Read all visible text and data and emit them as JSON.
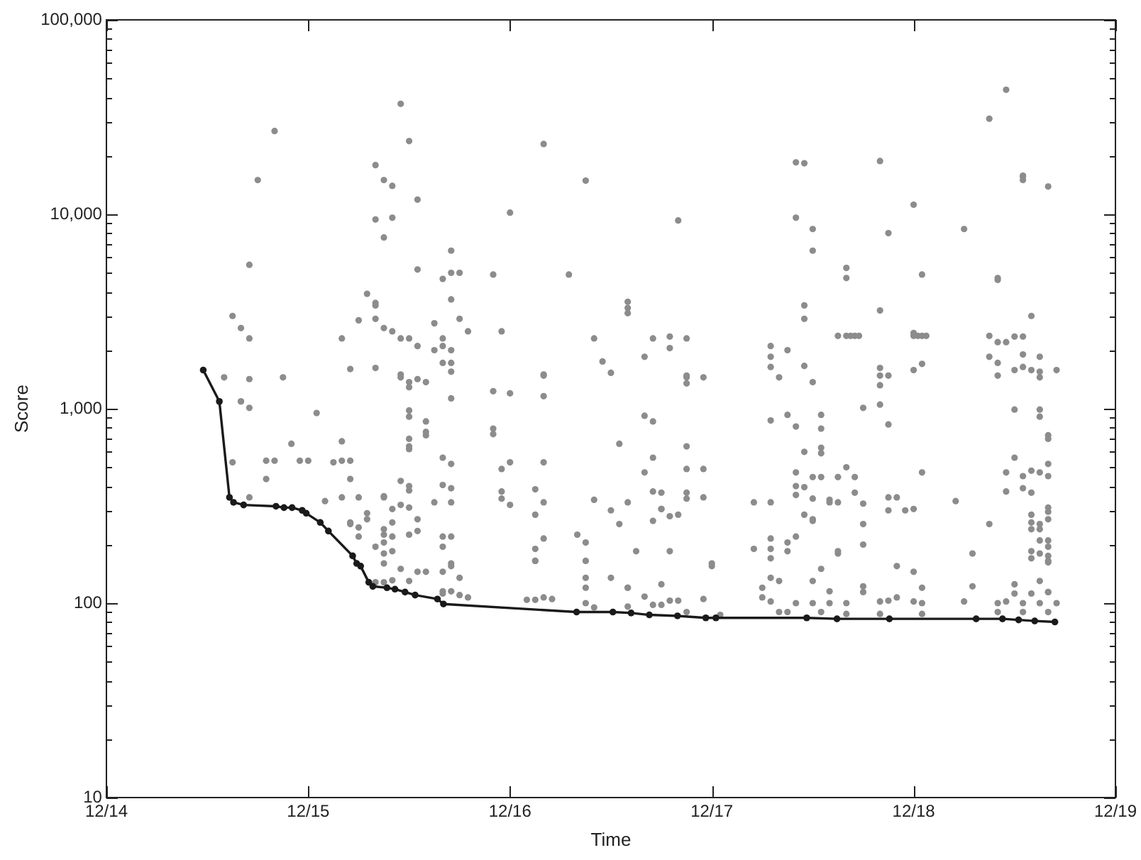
{
  "chart_data": {
    "type": "scatter",
    "xlabel": "Time",
    "ylabel": "Score",
    "log": "y",
    "marker": "circle",
    "xlim": [
      "--12-14",
      "--12-19"
    ],
    "xticks": [
      {
        "value": "--12-14",
        "label": "12/14"
      },
      {
        "value": "--12-15",
        "label": "12/15"
      },
      {
        "value": "--12-16",
        "label": "12/16"
      },
      {
        "value": "--12-17",
        "label": "12/17"
      },
      {
        "value": "--12-18",
        "label": "12/18"
      },
      {
        "value": "--12-19",
        "label": "12/19"
      }
    ],
    "ylim": [
      10,
      100000
    ],
    "yticks": [
      10,
      {
        "value": 20,
        "label": null
      },
      {
        "value": 30,
        "label": null
      },
      {
        "value": 40,
        "label": null
      },
      {
        "value": 50,
        "label": null
      },
      {
        "value": 60,
        "label": null
      },
      {
        "value": 70,
        "label": null
      },
      {
        "value": 80,
        "label": null
      },
      {
        "value": 90,
        "label": null
      },
      100,
      {
        "value": 200,
        "label": null
      },
      {
        "value": 300,
        "label": null
      },
      {
        "value": 400,
        "label": null
      },
      {
        "value": 500,
        "label": null
      },
      {
        "value": 600,
        "label": null
      },
      {
        "value": 700,
        "label": null
      },
      {
        "value": 800,
        "label": null
      },
      {
        "value": 900,
        "label": null
      },
      {
        "value": 1000,
        "label": "1,000"
      },
      {
        "value": 2000,
        "label": null
      },
      {
        "value": 3000,
        "label": null
      },
      {
        "value": 4000,
        "label": null
      },
      {
        "value": 5000,
        "label": null
      },
      {
        "value": 6000,
        "label": null
      },
      {
        "value": 7000,
        "label": null
      },
      {
        "value": 8000,
        "label": null
      },
      {
        "value": 9000,
        "label": null
      },
      {
        "value": 10000,
        "label": "10,000"
      },
      {
        "value": 20000,
        "label": null
      },
      {
        "value": 30000,
        "label": null
      },
      {
        "value": 40000,
        "label": null
      },
      {
        "value": 50000,
        "label": null
      },
      {
        "value": 60000,
        "label": null
      },
      {
        "value": 70000,
        "label": null
      },
      {
        "value": 80000,
        "label": null
      },
      {
        "value": 90000,
        "label": null
      },
      {
        "value": 100000,
        "label": "100,000"
      }
    ],
    "series": [
      {
        "type": "scatter",
        "color": "#8c8c8c",
        "x": [
          "--12-14T20:00",
          "--12-14T18:00",
          "--12-14T17:00",
          "--12-14T15:00",
          "--12-14T16:00",
          "--12-14T17:00",
          "--12-15T11:00",
          "--12-15T12:00",
          "--12-15T08:00",
          "--12-15T09:00",
          "--12-15T10:00",
          "--12-15T13:00",
          "--12-15T08:00",
          "--12-15T10:00",
          "--12-15T09:00",
          "--12-15T17:00",
          "--12-15T13:00",
          "--12-15T16:00",
          "--12-15T17:00",
          "--12-15T17:00",
          "--12-15T07:00",
          "--12-15T08:00",
          "--12-15T08:00",
          "--12-15T08:00",
          "--12-15T06:00",
          "--12-15T09:00",
          "--12-15T04:00",
          "--12-15T10:00",
          "--12-15T11:00",
          "--12-15T12:00",
          "--12-15T13:00",
          "--12-15T15:00",
          "--12-15T16:00",
          "--12-15T16:00",
          "--12-15T15:00",
          "--12-15T17:00",
          "--12-16T04:00",
          "--12-16T09:00",
          "--12-16T00:00",
          "--12-16T20:00",
          "--12-15T18:00",
          "--12-15T22:00",
          "--12-16T07:00",
          "--12-15T18:00",
          "--12-15T19:00",
          "--12-15T23:00",
          "--12-16T14:00",
          "--12-16T14:00",
          "--12-16T14:00",
          "--12-16T10:00",
          "--12-16T17:00",
          "--12-16T19:00",
          "--12-16T21:00",
          "--12-16T19:00",
          "--12-17T07:00",
          "--12-17T09:00",
          "--12-17T07:00",
          "--12-18T11:00",
          "--12-18T09:00",
          "--12-17T10:00",
          "--12-17T11:00",
          "--12-17T20:00",
          "--12-18T13:00",
          "--12-18T13:00",
          "--12-18T13:00",
          "--12-18T16:00",
          "--12-18T00:00",
          "--12-17T10:00",
          "--12-17T12:00",
          "--12-17T21:00",
          "--12-18T06:00",
          "--12-17T12:00",
          "--12-17T16:00",
          "--12-17T16:00",
          "--12-18T01:00",
          "--12-18T10:00",
          "--12-18T10:00",
          "--12-17T11:00",
          "--12-17T11:00",
          "--12-17T20:00",
          "--12-18T14:00",
          "--12-17T15:00",
          "--12-17T16:00",
          "--12-17T16:30",
          "--12-17T17:00",
          "--12-17T17:30",
          "--12-18T00:00",
          "--12-18T00:30",
          "--12-18T01:00",
          "--12-18T01:30",
          "--12-18T00:00",
          "--12-18T09:00",
          "--12-18T10:00",
          "--12-18T11:00",
          "--12-18T12:00",
          "--12-18T13:00",
          "--12-18T09:00",
          "--12-18T13:00",
          "--12-18T15:00",
          "--12-14T14:00",
          "--12-14T17:00",
          "--12-14T21:00",
          "--12-15T05:00",
          "--12-15T08:00",
          "--12-15T11:00",
          "--12-15T11:00",
          "--12-15T12:00",
          "--12-15T13:00",
          "--12-15T14:00",
          "--12-15T12:00",
          "--12-15T16:00",
          "--12-15T17:00",
          "--12-15T17:00",
          "--12-14T16:00",
          "--12-14T16:00",
          "--12-14T17:00",
          "--12-15T01:00",
          "--12-15T12:00",
          "--12-15T12:00",
          "--12-15T14:00",
          "--12-15T14:00",
          "--12-15T14:00",
          "--12-14T22:00",
          "--12-15T12:00",
          "--12-15T12:00",
          "--12-15T12:00",
          "--12-15T04:00",
          "--12-15T16:00",
          "--12-15T17:00",
          "--12-14T15:00",
          "--12-14T19:00",
          "--12-14T20:00",
          "--12-14T23:00",
          "--12-15T00:00",
          "--12-15T03:00",
          "--12-15T04:00",
          "--12-15T05:00",
          "--12-14T19:00",
          "--12-15T05:00",
          "--12-15T11:00",
          "--12-15T12:00",
          "--12-15T12:00",
          "--12-15T16:00",
          "--12-15T17:00",
          "--12-14T17:00",
          "--12-15T02:00",
          "--12-15T04:00",
          "--12-15T06:00",
          "--12-15T09:00",
          "--12-15T09:00",
          "--12-15T11:00",
          "--12-15T12:00",
          "--12-15T10:00",
          "--12-15T15:00",
          "--12-15T17:00",
          "--12-15T05:00",
          "--12-15T07:00",
          "--12-15T07:00",
          "--12-15T05:00",
          "--12-15T06:00",
          "--12-15T10:00",
          "--12-15T13:00",
          "--12-15T13:00",
          "--12-15T09:00",
          "--12-15T09:00",
          "--12-15T10:00",
          "--12-15T06:00",
          "--12-15T12:00",
          "--12-15T08:00",
          "--12-15T09:00",
          "--12-15T16:00",
          "--12-15T17:00",
          "--12-15T16:00",
          "--12-15T09:00",
          "--12-15T10:00",
          "--12-15T09:00",
          "--12-15T11:00",
          "--12-15T13:00",
          "--12-15T14:00",
          "--12-15T16:00",
          "--12-15T17:00",
          "--12-15T17:00",
          "--12-15T12:00",
          "--12-15T16:00",
          "--12-15T16:00",
          "--12-15T17:00",
          "--12-15T08:00",
          "--12-15T09:00",
          "--12-15T10:00",
          "--12-15T17:00",
          "--12-15T22:00",
          "--12-16T00:00",
          "--12-16T04:00",
          "--12-16T04:00",
          "--12-16T04:00",
          "--12-16T11:00",
          "--12-16T12:00",
          "--12-16T16:00",
          "--12-16T21:00",
          "--12-16T21:00",
          "--12-16T21:00",
          "--12-16T23:00",
          "--12-17T07:00",
          "--12-17T08:00",
          "--12-15T22:00",
          "--12-15T22:00",
          "--12-16T16:00",
          "--12-16T17:00",
          "--12-16T13:00",
          "--12-17T07:00",
          "--12-16T21:00",
          "--12-16T17:00",
          "--12-16T16:00",
          "--12-16T21:00",
          "--12-16T23:00",
          "--12-16T00:00",
          "--12-15T23:00",
          "--12-16T04:00",
          "--12-15T23:00",
          "--12-15T23:00",
          "--12-16T00:00",
          "--12-16T03:00",
          "--12-16T04:00",
          "--12-16T10:00",
          "--12-16T12:00",
          "--12-16T13:00",
          "--12-16T14:00",
          "--12-16T17:00",
          "--12-16T18:00",
          "--12-16T18:00",
          "--12-16T18:00",
          "--12-16T21:00",
          "--12-16T23:00",
          "--12-16T21:00",
          "--12-16T19:00",
          "--12-16T20:00",
          "--12-16T17:00",
          "--12-17T05:00",
          "--12-17T07:00",
          "--12-16T03:00",
          "--12-16T04:00",
          "--12-16T03:00",
          "--12-16T03:00",
          "--12-16T03:00",
          "--12-16T08:00",
          "--12-16T09:00",
          "--12-16T15:00",
          "--12-16T19:00",
          "--12-16T09:00",
          "--12-16T09:00",
          "--12-16T09:00",
          "--12-16T12:00",
          "--12-16T14:00",
          "--12-16T14:00",
          "--12-16T18:00",
          "--12-17T00:00",
          "--12-17T00:00",
          "--12-16T23:00",
          "--12-16T02:00",
          "--12-16T03:00",
          "--12-16T04:00",
          "--12-16T05:00",
          "--12-16T09:00",
          "--12-16T10:00",
          "--12-16T16:00",
          "--12-17T05:00",
          "--12-17T07:00",
          "--12-17T07:00",
          "--12-17T07:00",
          "--12-17T07:00",
          "--12-17T06:00",
          "--12-17T06:00",
          "--12-17T07:00",
          "--12-15T18:00",
          "--12-15T19:00",
          "--12-15T18:00",
          "--12-16T14:00",
          "--12-16T17:00",
          "--12-16T18:00",
          "--12-16T19:00",
          "--12-16T20:00",
          "--12-16T21:00",
          "--12-17T01:00",
          "--12-17T08:00",
          "--12-17T11:00",
          "--12-17T12:00",
          "--12-17T20:00",
          "--12-17T20:00",
          "--12-17T20:00",
          "--12-17T21:00",
          "--12-18T00:00",
          "--12-18T01:00",
          "--12-17T20:00",
          "--12-17T21:00",
          "--12-17T18:00",
          "--12-17T09:00",
          "--12-17T10:00",
          "--12-17T13:00",
          "--12-17T13:00",
          "--12-17T11:00",
          "--12-17T13:00",
          "--12-17T13:00",
          "--12-17T10:00",
          "--12-17T10:00",
          "--12-17T10:00",
          "--12-17T11:00",
          "--12-17T12:00",
          "--12-17T12:00",
          "--12-17T13:00",
          "--12-17T15:00",
          "--12-17T16:00",
          "--12-17T17:00",
          "--12-17T17:00",
          "--12-17T14:00",
          "--12-17T14:00",
          "--12-17T15:00",
          "--12-17T18:00",
          "--12-17T21:00",
          "--12-17T21:00",
          "--12-17T22:00",
          "--12-17T23:00",
          "--12-18T00:00",
          "--12-18T01:00",
          "--12-18T05:00",
          "--12-17T18:00",
          "--12-17T18:00",
          "--12-17T15:00",
          "--12-17T15:00",
          "--12-17T11:00",
          "--12-17T12:00",
          "--12-17T12:00",
          "--12-17T10:00",
          "--12-17T09:00",
          "--12-17T09:00",
          "--12-17T13:00",
          "--12-17T12:00",
          "--12-17T08:00",
          "--12-17T22:00",
          "--12-18T00:00",
          "--12-17T18:00",
          "--12-17T18:00",
          "--12-18T01:00",
          "--12-17T14:00",
          "--12-18T09:00",
          "--12-18T07:00",
          "--12-18T07:00",
          "--12-18T12:00",
          "--12-18T11:00",
          "--12-18T11:00",
          "--12-18T12:00",
          "--12-18T15:00",
          "--12-18T15:00",
          "--12-18T16:00",
          "--12-18T16:00",
          "--12-18T16:00",
          "--12-18T15:00",
          "--12-18T16:00",
          "--12-18T14:00",
          "--12-18T13:00",
          "--12-18T13:00",
          "--12-18T14:00",
          "--12-18T16:00",
          "--12-18T16:00",
          "--12-18T16:00",
          "--12-18T14:00",
          "--12-18T14:00",
          "--12-18T15:00",
          "--12-18T14:00",
          "--12-18T15:00",
          "--12-18T15:00",
          "--12-18T16:00",
          "--12-18T16:00",
          "--12-18T14:00",
          "--12-18T15:00",
          "--12-18T16:00",
          "--12-18T14:00",
          "--12-18T16:00",
          "--12-18T16:00",
          "--12-18T15:00",
          "--12-18T12:00",
          "--12-18T12:00",
          "--12-18T14:00",
          "--12-18T16:00",
          "--12-18T16:00",
          "--12-18T10:00",
          "--12-18T10:00",
          "--12-18T12:00",
          "--12-18T13:00",
          "--12-18T14:00",
          "--12-18T15:00",
          "--12-18T15:00",
          "--12-18T17:00",
          "--12-17T10:00",
          "--12-17T12:00",
          "--12-17T14:00",
          "--12-17T16:00",
          "--12-17T20:00",
          "--12-17T21:00",
          "--12-17T22:00",
          "--12-18T00:00",
          "--12-18T01:00",
          "--12-18T06:00",
          "--12-18T10:00",
          "--12-18T11:00",
          "--12-18T13:00",
          "--12-18T15:00",
          "--12-18T17:00",
          "--12-17T09:00",
          "--12-17T13:00",
          "--12-17T16:00",
          "--12-17T20:00",
          "--12-18T01:00",
          "--12-18T10:00",
          "--12-18T13:00",
          "--12-18T16:00"
        ],
        "values": [
          26800,
          15000,
          5500,
          3000,
          2600,
          2300,
          37000,
          23800,
          17900,
          15000,
          14000,
          11900,
          9400,
          9600,
          7600,
          6500,
          5200,
          4650,
          5000,
          3650,
          3900,
          3500,
          3400,
          2900,
          2850,
          2600,
          2300,
          2500,
          2300,
          2300,
          2100,
          2750,
          2300,
          2100,
          2000,
          2000,
          23000,
          14900,
          10200,
          9300,
          5000,
          4900,
          4900,
          2900,
          2500,
          2500,
          3550,
          3300,
          3100,
          2300,
          2300,
          2350,
          2300,
          2050,
          2100,
          2000,
          1850,
          43700,
          31000,
          18500,
          18300,
          18800,
          15600,
          15800,
          15000,
          13900,
          11200,
          9600,
          8400,
          8000,
          8400,
          6500,
          5300,
          4700,
          4900,
          4600,
          4700,
          3400,
          2900,
          3200,
          3000,
          2370,
          2370,
          2370,
          2370,
          2370,
          2370,
          2370,
          2370,
          2370,
          2450,
          2370,
          2200,
          2200,
          2350,
          2350,
          1850,
          1900,
          1850,
          1450,
          1420,
          1450,
          1600,
          1620,
          1450,
          1500,
          1370,
          1420,
          1370,
          1290,
          1720,
          1550,
          1130,
          1090,
          1090,
          1010,
          950,
          980,
          910,
          860,
          760,
          730,
          660,
          700,
          620,
          640,
          680,
          560,
          520,
          530,
          540,
          540,
          540,
          540,
          530,
          540,
          540,
          435,
          435,
          425,
          400,
          380,
          405,
          390,
          350,
          335,
          350,
          350,
          350,
          355,
          320,
          310,
          305,
          330,
          330,
          255,
          290,
          270,
          260,
          245,
          260,
          270,
          235,
          240,
          225,
          220,
          220,
          225,
          195,
          205,
          220,
          220,
          195,
          180,
          185,
          160,
          150,
          145,
          145,
          145,
          160,
          155,
          130,
          115,
          112,
          115,
          128,
          128,
          131,
          1720,
          1230,
          1200,
          1160,
          1480,
          1500,
          1750,
          1530,
          1850,
          1480,
          1450,
          1350,
          1450,
          1640,
          1450,
          790,
          740,
          920,
          860,
          660,
          870,
          640,
          560,
          470,
          490,
          490,
          530,
          490,
          530,
          375,
          345,
          320,
          385,
          330,
          340,
          300,
          255,
          330,
          375,
          370,
          305,
          305,
          345,
          350,
          370,
          280,
          285,
          265,
          330,
          330,
          285,
          215,
          190,
          165,
          165,
          225,
          205,
          185,
          185,
          165,
          135,
          120,
          135,
          120,
          120,
          125,
          160,
          155,
          105,
          104,
          104,
          107,
          105,
          100,
          95,
          108,
          190,
          190,
          215,
          170,
          135,
          120,
          107,
          102,
          135,
          107,
          110,
          96,
          98,
          98,
          103,
          103,
          90,
          87,
          90,
          1660,
          1370,
          1620,
          1320,
          1480,
          1480,
          1580,
          1700,
          1050,
          830,
          1010,
          930,
          810,
          930,
          790,
          600,
          590,
          630,
          470,
          400,
          360,
          395,
          345,
          445,
          445,
          445,
          500,
          445,
          370,
          340,
          330,
          330,
          325,
          350,
          300,
          350,
          300,
          305,
          470,
          335,
          255,
          200,
          180,
          185,
          285,
          270,
          265,
          220,
          205,
          185,
          150,
          130,
          130,
          155,
          145,
          122,
          114,
          120,
          115,
          255,
          180,
          122,
          560,
          470,
          375,
          990,
          990,
          910,
          730,
          700,
          520,
          470,
          450,
          480,
          450,
          390,
          370,
          310,
          295,
          270,
          285,
          260,
          255,
          240,
          240,
          210,
          210,
          195,
          185,
          180,
          175,
          170,
          165,
          162,
          130,
          125,
          112,
          112,
          114,
          114,
          1720,
          1480,
          1580,
          1640,
          1580,
          1550,
          1450,
          1580,
          100,
          100,
          100,
          100,
          102,
          103,
          107,
          102,
          100,
          102,
          100,
          102,
          100,
          100,
          100,
          90,
          90,
          88,
          88,
          88,
          90,
          90,
          90
        ]
      },
      {
        "type": "line",
        "color": "#1a1a1a",
        "x": [
          "--12-14T11:31",
          "--12-14T13:26",
          "--12-14T14:38",
          "--12-14T15:07",
          "--12-14T16:19",
          "--12-14T20:10",
          "--12-14T21:07",
          "--12-14T22:05",
          "--12-14T23:17",
          "--12-14T23:46",
          "--12-15T01:26",
          "--12-15T02:24",
          "--12-15T05:17",
          "--12-15T05:46",
          "--12-15T06:14",
          "--12-15T07:12",
          "--12-15T07:41",
          "--12-15T09:22",
          "--12-15T10:19",
          "--12-15T11:31",
          "--12-15T12:43",
          "--12-15T15:22",
          "--12-15T16:05",
          "--12-16T07:55",
          "--12-16T12:14",
          "--12-16T14:24",
          "--12-16T16:34",
          "--12-16T19:55",
          "--12-16T23:17",
          "--12-17T00:29",
          "--12-17T11:17",
          "--12-17T14:53",
          "--12-17T21:07",
          "--12-18T07:26",
          "--12-18T10:34",
          "--12-18T12:29",
          "--12-18T14:24",
          "--12-18T16:48"
        ],
        "values": [
          1580,
          1090,
          350,
          330,
          320,
          315,
          310,
          310,
          300,
          290,
          260,
          235,
          175,
          160,
          155,
          128,
          122,
          120,
          118,
          114,
          110,
          105,
          99,
          90,
          90,
          89,
          87,
          86,
          84,
          84,
          84,
          83,
          83,
          83,
          83,
          82,
          81,
          80
        ]
      }
    ]
  }
}
